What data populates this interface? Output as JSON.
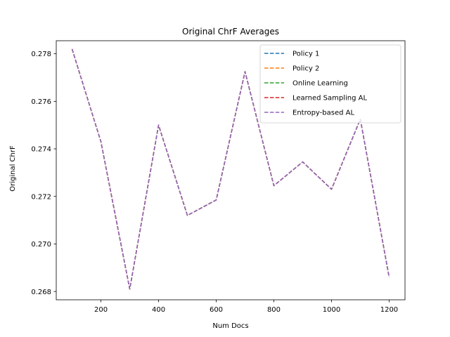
{
  "chart_data": {
    "type": "line",
    "title": "Original ChrF Averages",
    "xlabel": "Num Docs",
    "ylabel": "Original ChrF",
    "xlim": [
      45,
      1255
    ],
    "ylim": [
      0.26765,
      0.27855
    ],
    "xticks": [
      200,
      400,
      600,
      800,
      1000,
      1200
    ],
    "yticks": [
      0.268,
      0.27,
      0.272,
      0.274,
      0.276,
      0.278
    ],
    "ytick_labels": [
      "0.268",
      "0.270",
      "0.272",
      "0.274",
      "0.276",
      "0.278"
    ],
    "legend_position": "top-right",
    "x": [
      100,
      200,
      300,
      400,
      500,
      600,
      700,
      800,
      900,
      1000,
      1100,
      1200
    ],
    "series": [
      {
        "name": "Policy 1",
        "color": "#1f77b4",
        "values": [
          0.2782,
          0.2743,
          0.2681,
          0.275,
          0.2712,
          0.27185,
          0.27725,
          0.27245,
          0.27345,
          0.2723,
          0.27525,
          0.2686
        ]
      },
      {
        "name": "Policy 2",
        "color": "#ff7f0e",
        "values": [
          0.2782,
          0.2743,
          0.2681,
          0.275,
          0.2712,
          0.27185,
          0.27725,
          0.27245,
          0.27345,
          0.2723,
          0.27525,
          0.2686
        ]
      },
      {
        "name": "Online Learning",
        "color": "#2ca02c",
        "values": [
          0.2782,
          0.2743,
          0.2681,
          0.275,
          0.2712,
          0.27185,
          0.27725,
          0.27245,
          0.27345,
          0.2723,
          0.27525,
          0.2686
        ]
      },
      {
        "name": "Learned Sampling AL",
        "color": "#d62728",
        "values": [
          0.2782,
          0.2743,
          0.2681,
          0.275,
          0.2712,
          0.27185,
          0.27725,
          0.27245,
          0.27345,
          0.2723,
          0.27525,
          0.2686
        ]
      },
      {
        "name": "Entropy-based AL",
        "color": "#9467bd",
        "values": [
          0.2782,
          0.2743,
          0.2681,
          0.275,
          0.2712,
          0.27185,
          0.27725,
          0.27245,
          0.27345,
          0.2723,
          0.27525,
          0.2686
        ]
      }
    ]
  }
}
